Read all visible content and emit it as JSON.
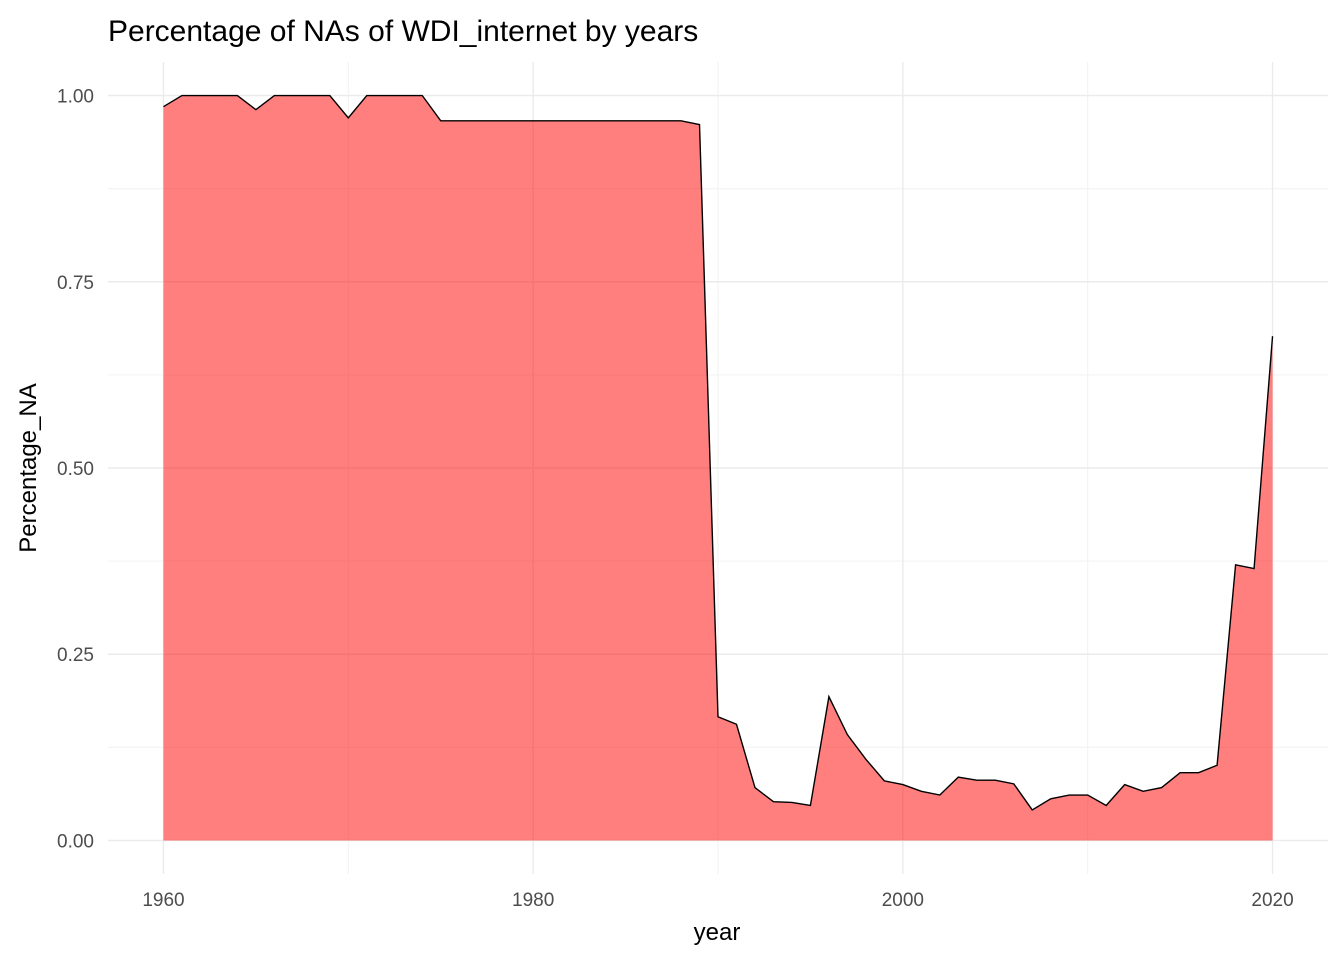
{
  "chart_data": {
    "type": "area",
    "title": "Percentage of NAs of WDI_internet by years",
    "xlabel": "year",
    "ylabel": "Percentage_NA",
    "xlim": [
      1957,
      2023
    ],
    "ylim": [
      -0.045,
      1.045
    ],
    "x_ticks": [
      1960,
      1980,
      2000,
      2020
    ],
    "y_ticks": [
      0.0,
      0.25,
      0.5,
      0.75,
      1.0
    ],
    "x_tick_labels": [
      "1960",
      "1980",
      "2000",
      "2020"
    ],
    "y_tick_labels": [
      "0.00",
      "0.25",
      "0.50",
      "0.75",
      "1.00"
    ],
    "grid": true,
    "legend": "none",
    "fill_color": "#ff0000",
    "line_color": "#000000",
    "x": [
      1960,
      1961,
      1962,
      1963,
      1964,
      1965,
      1966,
      1967,
      1968,
      1969,
      1970,
      1971,
      1972,
      1973,
      1974,
      1975,
      1976,
      1977,
      1978,
      1979,
      1980,
      1981,
      1982,
      1983,
      1984,
      1985,
      1986,
      1987,
      1988,
      1989,
      1990,
      1991,
      1992,
      1993,
      1994,
      1995,
      1996,
      1997,
      1998,
      1999,
      2000,
      2001,
      2002,
      2003,
      2004,
      2005,
      2006,
      2007,
      2008,
      2009,
      2010,
      2011,
      2012,
      2013,
      2014,
      2015,
      2016,
      2017,
      2018,
      2019,
      2020
    ],
    "values": [
      0.985,
      1.0,
      1.0,
      1.0,
      1.0,
      0.981,
      1.0,
      1.0,
      1.0,
      1.0,
      0.97,
      1.0,
      1.0,
      1.0,
      1.0,
      0.966,
      0.966,
      0.966,
      0.966,
      0.966,
      0.966,
      0.966,
      0.966,
      0.966,
      0.966,
      0.966,
      0.966,
      0.966,
      0.966,
      0.961,
      0.166,
      0.156,
      0.071,
      0.052,
      0.051,
      0.047,
      0.193,
      0.142,
      0.109,
      0.08,
      0.075,
      0.066,
      0.061,
      0.085,
      0.081,
      0.081,
      0.076,
      0.041,
      0.056,
      0.061,
      0.061,
      0.047,
      0.075,
      0.066,
      0.071,
      0.091,
      0.091,
      0.101,
      0.37,
      0.365,
      0.677
    ]
  }
}
